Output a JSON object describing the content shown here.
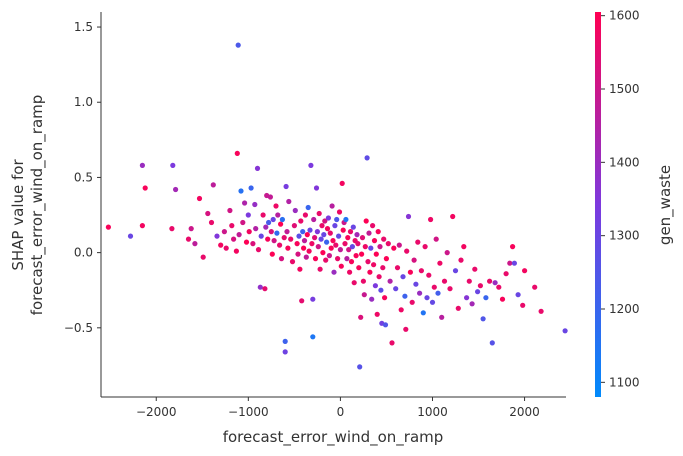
{
  "chart_data": {
    "type": "scatter",
    "title": "",
    "xlabel": "forecast_error_wind_on_ramp",
    "ylabel_lines": [
      "SHAP value for",
      "forecast_error_wind_on_ramp"
    ],
    "xlim": [
      -2600,
      2450
    ],
    "ylim": [
      -0.96,
      1.6
    ],
    "xticks": [
      -2000,
      -1000,
      0,
      1000,
      2000
    ],
    "xtick_labels": [
      "−2000",
      "−1000",
      "0",
      "1000",
      "2000"
    ],
    "yticks": [
      -0.5,
      0.0,
      0.5,
      1.0,
      1.5
    ],
    "ytick_labels": [
      "−0.5",
      "0.0",
      "0.5",
      "1.0",
      "1.5"
    ],
    "grid": false,
    "colorbar": {
      "label": "gen_waste",
      "min": 1080,
      "max": 1605,
      "ticks": [
        1100,
        1200,
        1300,
        1400,
        1500,
        1600
      ],
      "tick_labels": [
        "1100",
        "1200",
        "1300",
        "1400",
        "1500",
        "1600"
      ],
      "colors": [
        "#008afb",
        "#7d39de",
        "#ff0052"
      ]
    },
    "points": [
      {
        "x": -2520,
        "y": 0.17,
        "c": 1590
      },
      {
        "x": -2280,
        "y": 0.11,
        "c": 1300
      },
      {
        "x": -2150,
        "y": 0.58,
        "c": 1400
      },
      {
        "x": -2150,
        "y": 0.18,
        "c": 1580
      },
      {
        "x": -2120,
        "y": 0.43,
        "c": 1590
      },
      {
        "x": -1820,
        "y": 0.58,
        "c": 1340
      },
      {
        "x": -1790,
        "y": 0.42,
        "c": 1420
      },
      {
        "x": -1830,
        "y": 0.16,
        "c": 1560
      },
      {
        "x": -1650,
        "y": 0.09,
        "c": 1560
      },
      {
        "x": -1620,
        "y": 0.16,
        "c": 1500
      },
      {
        "x": -1580,
        "y": 0.06,
        "c": 1470
      },
      {
        "x": -1530,
        "y": 0.36,
        "c": 1580
      },
      {
        "x": -1490,
        "y": -0.03,
        "c": 1560
      },
      {
        "x": -1440,
        "y": 0.26,
        "c": 1520
      },
      {
        "x": -1400,
        "y": 0.2,
        "c": 1560
      },
      {
        "x": -1380,
        "y": 0.45,
        "c": 1470
      },
      {
        "x": -1340,
        "y": 0.11,
        "c": 1350
      },
      {
        "x": -1300,
        "y": 0.05,
        "c": 1580
      },
      {
        "x": -1260,
        "y": 0.14,
        "c": 1500
      },
      {
        "x": -1240,
        "y": 0.03,
        "c": 1560
      },
      {
        "x": -1200,
        "y": 0.28,
        "c": 1510
      },
      {
        "x": -1180,
        "y": 0.18,
        "c": 1560
      },
      {
        "x": -1160,
        "y": 0.09,
        "c": 1520
      },
      {
        "x": -1130,
        "y": 0.01,
        "c": 1580
      },
      {
        "x": -1110,
        "y": 1.38,
        "c": 1240
      },
      {
        "x": -1120,
        "y": 0.66,
        "c": 1590
      },
      {
        "x": -1100,
        "y": 0.12,
        "c": 1480
      },
      {
        "x": -1080,
        "y": 0.41,
        "c": 1160
      },
      {
        "x": -1060,
        "y": 0.2,
        "c": 1510
      },
      {
        "x": -1040,
        "y": 0.33,
        "c": 1440
      },
      {
        "x": -1020,
        "y": 0.07,
        "c": 1600
      },
      {
        "x": -1000,
        "y": 0.25,
        "c": 1340
      },
      {
        "x": -990,
        "y": 0.14,
        "c": 1580
      },
      {
        "x": -970,
        "y": 0.43,
        "c": 1200
      },
      {
        "x": -950,
        "y": 0.06,
        "c": 1530
      },
      {
        "x": -930,
        "y": 0.32,
        "c": 1390
      },
      {
        "x": -920,
        "y": 0.16,
        "c": 1450
      },
      {
        "x": -900,
        "y": 0.56,
        "c": 1360
      },
      {
        "x": -890,
        "y": 0.02,
        "c": 1560
      },
      {
        "x": -870,
        "y": -0.23,
        "c": 1380
      },
      {
        "x": -860,
        "y": 0.11,
        "c": 1300
      },
      {
        "x": -840,
        "y": 0.25,
        "c": 1560
      },
      {
        "x": -820,
        "y": -0.24,
        "c": 1550
      },
      {
        "x": -810,
        "y": 0.17,
        "c": 1420
      },
      {
        "x": -800,
        "y": 0.38,
        "c": 1490
      },
      {
        "x": -790,
        "y": 0.09,
        "c": 1590
      },
      {
        "x": -780,
        "y": 0.2,
        "c": 1230
      },
      {
        "x": -760,
        "y": 0.37,
        "c": 1480
      },
      {
        "x": -750,
        "y": 0.14,
        "c": 1530
      },
      {
        "x": -740,
        "y": -0.01,
        "c": 1600
      },
      {
        "x": -730,
        "y": 0.22,
        "c": 1300
      },
      {
        "x": -720,
        "y": 0.08,
        "c": 1510
      },
      {
        "x": -700,
        "y": 0.31,
        "c": 1570
      },
      {
        "x": -690,
        "y": 0.13,
        "c": 1180
      },
      {
        "x": -680,
        "y": 0.25,
        "c": 1460
      },
      {
        "x": -660,
        "y": 0.05,
        "c": 1560
      },
      {
        "x": -650,
        "y": 0.19,
        "c": 1600
      },
      {
        "x": -640,
        "y": -0.04,
        "c": 1520
      },
      {
        "x": -630,
        "y": 0.22,
        "c": 1170
      },
      {
        "x": -610,
        "y": 0.1,
        "c": 1550
      },
      {
        "x": -600,
        "y": -0.59,
        "c": 1210
      },
      {
        "x": -600,
        "y": -0.66,
        "c": 1310
      },
      {
        "x": -590,
        "y": 0.44,
        "c": 1330
      },
      {
        "x": -580,
        "y": 0.14,
        "c": 1480
      },
      {
        "x": -570,
        "y": 0.03,
        "c": 1590
      },
      {
        "x": -560,
        "y": 0.34,
        "c": 1450
      },
      {
        "x": -540,
        "y": 0.09,
        "c": 1560
      },
      {
        "x": -520,
        "y": -0.06,
        "c": 1560
      },
      {
        "x": -500,
        "y": 0.18,
        "c": 1540
      },
      {
        "x": -490,
        "y": 0.28,
        "c": 1400
      },
      {
        "x": -470,
        "y": 0.06,
        "c": 1590
      },
      {
        "x": -460,
        "y": -0.01,
        "c": 1520
      },
      {
        "x": -450,
        "y": 0.11,
        "c": 1270
      },
      {
        "x": -440,
        "y": -0.11,
        "c": 1580
      },
      {
        "x": -430,
        "y": 0.21,
        "c": 1560
      },
      {
        "x": -420,
        "y": -0.32,
        "c": 1550
      },
      {
        "x": -410,
        "y": 0.14,
        "c": 1210
      },
      {
        "x": -400,
        "y": 0.03,
        "c": 1600
      },
      {
        "x": -390,
        "y": 0.08,
        "c": 1470
      },
      {
        "x": -380,
        "y": 0.25,
        "c": 1560
      },
      {
        "x": -370,
        "y": -0.03,
        "c": 1480
      },
      {
        "x": -360,
        "y": 0.12,
        "c": 1600
      },
      {
        "x": -350,
        "y": 0.3,
        "c": 1200
      },
      {
        "x": -340,
        "y": 0.01,
        "c": 1580
      },
      {
        "x": -330,
        "y": 0.15,
        "c": 1300
      },
      {
        "x": -320,
        "y": 0.58,
        "c": 1340
      },
      {
        "x": -310,
        "y": 0.06,
        "c": 1570
      },
      {
        "x": -300,
        "y": -0.56,
        "c": 1140
      },
      {
        "x": -300,
        "y": -0.31,
        "c": 1330
      },
      {
        "x": -290,
        "y": 0.22,
        "c": 1460
      },
      {
        "x": -280,
        "y": 0.1,
        "c": 1540
      },
      {
        "x": -270,
        "y": -0.04,
        "c": 1590
      },
      {
        "x": -260,
        "y": 0.43,
        "c": 1350
      },
      {
        "x": -250,
        "y": 0.14,
        "c": 1350
      },
      {
        "x": -240,
        "y": 0.04,
        "c": 1510
      },
      {
        "x": -230,
        "y": 0.26,
        "c": 1560
      },
      {
        "x": -220,
        "y": -0.11,
        "c": 1560
      },
      {
        "x": -210,
        "y": 0.09,
        "c": 1300
      },
      {
        "x": -200,
        "y": 0.18,
        "c": 1560
      },
      {
        "x": -190,
        "y": 0.0,
        "c": 1600
      },
      {
        "x": -180,
        "y": 0.12,
        "c": 1300
      },
      {
        "x": -170,
        "y": 0.21,
        "c": 1520
      },
      {
        "x": -160,
        "y": -0.05,
        "c": 1560
      },
      {
        "x": -150,
        "y": 0.07,
        "c": 1200
      },
      {
        "x": -140,
        "y": 0.16,
        "c": 1580
      },
      {
        "x": -130,
        "y": 0.23,
        "c": 1340
      },
      {
        "x": -120,
        "y": -0.02,
        "c": 1500
      },
      {
        "x": -110,
        "y": 0.13,
        "c": 1560
      },
      {
        "x": -100,
        "y": 0.03,
        "c": 1590
      },
      {
        "x": -90,
        "y": 0.31,
        "c": 1460
      },
      {
        "x": -80,
        "y": 0.08,
        "c": 1590
      },
      {
        "x": -70,
        "y": -0.13,
        "c": 1400
      },
      {
        "x": -60,
        "y": 0.18,
        "c": 1300
      },
      {
        "x": -50,
        "y": 0.05,
        "c": 1560
      },
      {
        "x": -40,
        "y": 0.22,
        "c": 1240
      },
      {
        "x": -30,
        "y": -0.04,
        "c": 1560
      },
      {
        "x": -20,
        "y": 0.11,
        "c": 1290
      },
      {
        "x": -10,
        "y": 0.27,
        "c": 1570
      },
      {
        "x": 0,
        "y": 0.02,
        "c": 1480
      },
      {
        "x": 10,
        "y": -0.09,
        "c": 1590
      },
      {
        "x": 20,
        "y": 0.46,
        "c": 1580
      },
      {
        "x": 30,
        "y": 0.15,
        "c": 1590
      },
      {
        "x": 40,
        "y": 0.2,
        "c": 1500
      },
      {
        "x": 50,
        "y": 0.06,
        "c": 1560
      },
      {
        "x": 60,
        "y": 0.22,
        "c": 1150
      },
      {
        "x": 70,
        "y": -0.04,
        "c": 1460
      },
      {
        "x": 80,
        "y": 0.1,
        "c": 1590
      },
      {
        "x": 90,
        "y": 0.02,
        "c": 1510
      },
      {
        "x": 100,
        "y": -0.13,
        "c": 1570
      },
      {
        "x": 110,
        "y": 0.14,
        "c": 1560
      },
      {
        "x": 120,
        "y": -0.06,
        "c": 1590
      },
      {
        "x": 130,
        "y": 0.04,
        "c": 1300
      },
      {
        "x": 140,
        "y": 0.17,
        "c": 1300
      },
      {
        "x": 150,
        "y": -0.2,
        "c": 1560
      },
      {
        "x": 160,
        "y": 0.08,
        "c": 1560
      },
      {
        "x": 170,
        "y": -0.02,
        "c": 1590
      },
      {
        "x": 180,
        "y": 0.12,
        "c": 1420
      },
      {
        "x": 190,
        "y": 0.06,
        "c": 1550
      },
      {
        "x": 200,
        "y": -0.1,
        "c": 1590
      },
      {
        "x": 210,
        "y": -0.76,
        "c": 1260
      },
      {
        "x": 220,
        "y": -0.43,
        "c": 1530
      },
      {
        "x": 230,
        "y": -0.01,
        "c": 1600
      },
      {
        "x": 240,
        "y": 0.1,
        "c": 1540
      },
      {
        "x": 250,
        "y": -0.19,
        "c": 1560
      },
      {
        "x": 260,
        "y": -0.28,
        "c": 1490
      },
      {
        "x": 270,
        "y": 0.04,
        "c": 1570
      },
      {
        "x": 280,
        "y": 0.21,
        "c": 1600
      },
      {
        "x": 290,
        "y": 0.63,
        "c": 1280
      },
      {
        "x": 300,
        "y": -0.06,
        "c": 1560
      },
      {
        "x": 310,
        "y": 0.13,
        "c": 1480
      },
      {
        "x": 320,
        "y": -0.13,
        "c": 1590
      },
      {
        "x": 330,
        "y": 0.03,
        "c": 1300
      },
      {
        "x": 340,
        "y": -0.31,
        "c": 1400
      },
      {
        "x": 350,
        "y": 0.18,
        "c": 1560
      },
      {
        "x": 360,
        "y": -0.08,
        "c": 1570
      },
      {
        "x": 370,
        "y": 0.08,
        "c": 1590
      },
      {
        "x": 380,
        "y": -0.22,
        "c": 1340
      },
      {
        "x": 390,
        "y": -0.01,
        "c": 1600
      },
      {
        "x": 400,
        "y": -0.41,
        "c": 1570
      },
      {
        "x": 410,
        "y": 0.14,
        "c": 1590
      },
      {
        "x": 420,
        "y": -0.16,
        "c": 1560
      },
      {
        "x": 430,
        "y": 0.04,
        "c": 1500
      },
      {
        "x": 440,
        "y": -0.25,
        "c": 1280
      },
      {
        "x": 450,
        "y": -0.47,
        "c": 1320
      },
      {
        "x": 460,
        "y": -0.1,
        "c": 1560
      },
      {
        "x": 470,
        "y": 0.09,
        "c": 1560
      },
      {
        "x": 480,
        "y": -0.3,
        "c": 1590
      },
      {
        "x": 490,
        "y": -0.48,
        "c": 1250
      },
      {
        "x": 500,
        "y": -0.04,
        "c": 1600
      },
      {
        "x": 520,
        "y": 0.06,
        "c": 1560
      },
      {
        "x": 540,
        "y": -0.19,
        "c": 1450
      },
      {
        "x": 560,
        "y": -0.6,
        "c": 1560
      },
      {
        "x": 580,
        "y": 0.03,
        "c": 1590
      },
      {
        "x": 600,
        "y": -0.24,
        "c": 1300
      },
      {
        "x": 620,
        "y": -0.1,
        "c": 1560
      },
      {
        "x": 640,
        "y": 0.05,
        "c": 1500
      },
      {
        "x": 660,
        "y": -0.38,
        "c": 1570
      },
      {
        "x": 680,
        "y": -0.16,
        "c": 1300
      },
      {
        "x": 700,
        "y": -0.29,
        "c": 1210
      },
      {
        "x": 710,
        "y": -0.51,
        "c": 1560
      },
      {
        "x": 720,
        "y": 0.01,
        "c": 1560
      },
      {
        "x": 740,
        "y": 0.24,
        "c": 1360
      },
      {
        "x": 760,
        "y": -0.13,
        "c": 1590
      },
      {
        "x": 780,
        "y": -0.33,
        "c": 1560
      },
      {
        "x": 800,
        "y": -0.05,
        "c": 1520
      },
      {
        "x": 820,
        "y": -0.21,
        "c": 1300
      },
      {
        "x": 840,
        "y": 0.07,
        "c": 1560
      },
      {
        "x": 860,
        "y": -0.27,
        "c": 1400
      },
      {
        "x": 880,
        "y": -0.12,
        "c": 1560
      },
      {
        "x": 900,
        "y": -0.4,
        "c": 1150
      },
      {
        "x": 920,
        "y": 0.04,
        "c": 1560
      },
      {
        "x": 940,
        "y": -0.3,
        "c": 1300
      },
      {
        "x": 960,
        "y": -0.15,
        "c": 1560
      },
      {
        "x": 980,
        "y": 0.22,
        "c": 1570
      },
      {
        "x": 1000,
        "y": -0.33,
        "c": 1290
      },
      {
        "x": 1020,
        "y": -0.23,
        "c": 1560
      },
      {
        "x": 1040,
        "y": 0.09,
        "c": 1510
      },
      {
        "x": 1060,
        "y": -0.27,
        "c": 1220
      },
      {
        "x": 1080,
        "y": -0.07,
        "c": 1570
      },
      {
        "x": 1100,
        "y": -0.43,
        "c": 1460
      },
      {
        "x": 1130,
        "y": -0.19,
        "c": 1560
      },
      {
        "x": 1160,
        "y": 0.0,
        "c": 1500
      },
      {
        "x": 1190,
        "y": -0.24,
        "c": 1560
      },
      {
        "x": 1220,
        "y": 0.24,
        "c": 1580
      },
      {
        "x": 1250,
        "y": -0.12,
        "c": 1300
      },
      {
        "x": 1280,
        "y": -0.37,
        "c": 1560
      },
      {
        "x": 1310,
        "y": -0.05,
        "c": 1560
      },
      {
        "x": 1340,
        "y": 0.04,
        "c": 1580
      },
      {
        "x": 1370,
        "y": -0.3,
        "c": 1360
      },
      {
        "x": 1400,
        "y": -0.19,
        "c": 1560
      },
      {
        "x": 1430,
        "y": -0.34,
        "c": 1420
      },
      {
        "x": 1460,
        "y": -0.11,
        "c": 1560
      },
      {
        "x": 1490,
        "y": -0.26,
        "c": 1300
      },
      {
        "x": 1520,
        "y": -0.22,
        "c": 1560
      },
      {
        "x": 1550,
        "y": -0.44,
        "c": 1250
      },
      {
        "x": 1580,
        "y": -0.3,
        "c": 1200
      },
      {
        "x": 1620,
        "y": -0.19,
        "c": 1560
      },
      {
        "x": 1650,
        "y": -0.6,
        "c": 1260
      },
      {
        "x": 1680,
        "y": -0.2,
        "c": 1400
      },
      {
        "x": 1720,
        "y": -0.23,
        "c": 1560
      },
      {
        "x": 1760,
        "y": -0.31,
        "c": 1590
      },
      {
        "x": 1800,
        "y": -0.14,
        "c": 1560
      },
      {
        "x": 1840,
        "y": -0.07,
        "c": 1500
      },
      {
        "x": 1870,
        "y": 0.04,
        "c": 1590
      },
      {
        "x": 1890,
        "y": -0.07,
        "c": 1300
      },
      {
        "x": 1930,
        "y": -0.28,
        "c": 1300
      },
      {
        "x": 1980,
        "y": -0.35,
        "c": 1560
      },
      {
        "x": 2000,
        "y": -0.12,
        "c": 1580
      },
      {
        "x": 2110,
        "y": -0.23,
        "c": 1560
      },
      {
        "x": 2180,
        "y": -0.39,
        "c": 1560
      },
      {
        "x": 2440,
        "y": -0.52,
        "c": 1300
      }
    ]
  }
}
